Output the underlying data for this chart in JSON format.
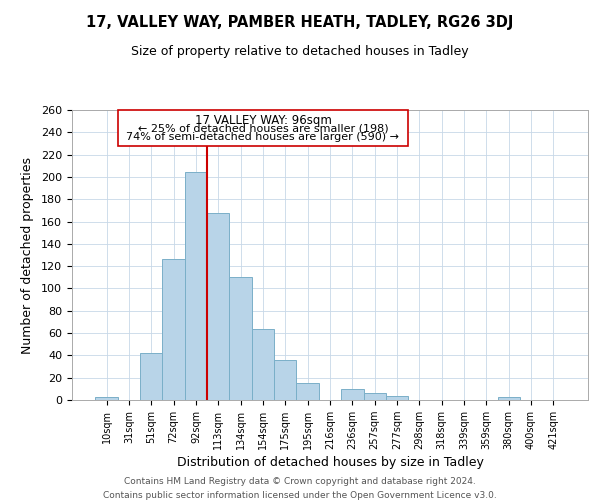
{
  "title": "17, VALLEY WAY, PAMBER HEATH, TADLEY, RG26 3DJ",
  "subtitle": "Size of property relative to detached houses in Tadley",
  "xlabel": "Distribution of detached houses by size in Tadley",
  "ylabel": "Number of detached properties",
  "bar_color": "#b8d4e8",
  "bar_edge_color": "#7aafc8",
  "categories": [
    "10sqm",
    "31sqm",
    "51sqm",
    "72sqm",
    "92sqm",
    "113sqm",
    "134sqm",
    "154sqm",
    "175sqm",
    "195sqm",
    "216sqm",
    "236sqm",
    "257sqm",
    "277sqm",
    "298sqm",
    "318sqm",
    "339sqm",
    "359sqm",
    "380sqm",
    "400sqm",
    "421sqm"
  ],
  "values": [
    3,
    0,
    42,
    126,
    204,
    168,
    110,
    64,
    36,
    15,
    0,
    10,
    6,
    4,
    0,
    0,
    0,
    0,
    3,
    0,
    0
  ],
  "ylim": [
    0,
    260
  ],
  "yticks": [
    0,
    20,
    40,
    60,
    80,
    100,
    120,
    140,
    160,
    180,
    200,
    220,
    240,
    260
  ],
  "property_line_x": 4.5,
  "property_line_color": "#cc0000",
  "annotation_title": "17 VALLEY WAY: 96sqm",
  "annotation_line1": "← 25% of detached houses are smaller (198)",
  "annotation_line2": "74% of semi-detached houses are larger (590) →",
  "annotation_box_color": "#ffffff",
  "annotation_box_edge_color": "#cc0000",
  "footer1": "Contains HM Land Registry data © Crown copyright and database right 2024.",
  "footer2": "Contains public sector information licensed under the Open Government Licence v3.0.",
  "background_color": "#ffffff",
  "grid_color": "#c8d8e8"
}
